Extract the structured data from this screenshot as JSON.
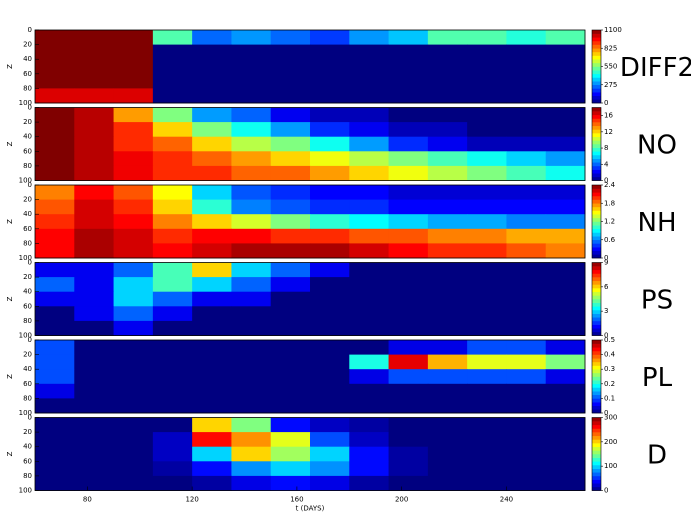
{
  "chart_data": [
    {
      "type": "heatmap",
      "label": "DIFF2",
      "ylabel": "Z",
      "xlim": [
        60,
        270
      ],
      "ylim": [
        100,
        0
      ],
      "yticks": [
        0,
        20,
        40,
        60,
        80,
        100
      ],
      "x_bins": [
        60,
        75,
        90,
        105,
        120,
        135,
        150,
        165,
        180,
        195,
        210,
        225,
        240,
        255,
        270
      ],
      "y_bins": [
        0,
        20,
        40,
        60,
        80,
        100
      ],
      "zlim": [
        0,
        1100
      ],
      "zticks": [
        0,
        275,
        550,
        825,
        1100
      ],
      "values": [
        [
          1100,
          1100,
          1100,
          500,
          250,
          300,
          250,
          200,
          300,
          350,
          500,
          500,
          450,
          500
        ],
        [
          1100,
          1100,
          1100,
          0,
          0,
          0,
          0,
          0,
          0,
          0,
          0,
          0,
          0,
          0
        ],
        [
          1100,
          1100,
          1100,
          0,
          0,
          0,
          0,
          0,
          0,
          0,
          0,
          0,
          0,
          0
        ],
        [
          1100,
          1100,
          1100,
          0,
          0,
          0,
          0,
          0,
          0,
          0,
          0,
          0,
          0,
          0
        ],
        [
          1000,
          1000,
          1000,
          0,
          0,
          0,
          0,
          0,
          0,
          0,
          0,
          0,
          0,
          0
        ]
      ]
    },
    {
      "type": "heatmap",
      "label": "NO",
      "ylabel": "Z",
      "xlim": [
        60,
        270
      ],
      "ylim": [
        100,
        0
      ],
      "yticks": [
        0,
        20,
        40,
        60,
        80,
        100
      ],
      "x_bins": [
        60,
        75,
        90,
        105,
        120,
        135,
        150,
        165,
        180,
        195,
        210,
        225,
        240,
        255,
        270
      ],
      "y_bins": [
        0,
        20,
        40,
        60,
        80,
        100
      ],
      "zlim": [
        0,
        18
      ],
      "zticks": [
        0,
        4,
        8,
        12,
        16
      ],
      "values": [
        [
          18,
          17,
          13,
          9,
          5,
          4,
          2,
          1,
          1,
          0,
          0,
          0,
          0,
          0
        ],
        [
          18,
          17,
          15,
          12,
          9,
          7,
          5,
          3,
          2,
          1,
          1,
          0,
          0,
          0
        ],
        [
          18,
          17,
          15,
          14,
          12,
          10,
          9,
          7,
          5,
          3,
          2,
          1,
          1,
          1
        ],
        [
          18,
          17,
          16,
          15,
          14,
          13,
          12,
          11,
          10,
          9,
          8,
          7,
          6,
          5
        ],
        [
          18,
          17,
          16,
          15,
          15,
          14,
          14,
          13,
          12,
          11,
          10,
          9,
          8,
          7
        ]
      ]
    },
    {
      "type": "heatmap",
      "label": "NH",
      "ylabel": "Z",
      "xlim": [
        60,
        270
      ],
      "ylim": [
        100,
        0
      ],
      "yticks": [
        0,
        20,
        40,
        60,
        80,
        100
      ],
      "x_bins": [
        60,
        75,
        90,
        105,
        120,
        135,
        150,
        165,
        180,
        195,
        210,
        225,
        240,
        255,
        270
      ],
      "y_bins": [
        0,
        20,
        40,
        60,
        80,
        100
      ],
      "zlim": [
        0,
        2.4
      ],
      "zticks": [
        0,
        0.6,
        1.2,
        1.8,
        2.4
      ],
      "values": [
        [
          1.8,
          2.1,
          1.9,
          1.5,
          0.8,
          0.5,
          0.4,
          0.3,
          0.3,
          0.2,
          0.2,
          0.2,
          0.2,
          0.2
        ],
        [
          1.9,
          2.2,
          2.0,
          1.6,
          1.0,
          0.6,
          0.5,
          0.4,
          0.4,
          0.3,
          0.3,
          0.3,
          0.3,
          0.3
        ],
        [
          2.0,
          2.2,
          2.1,
          1.8,
          1.6,
          1.4,
          1.2,
          1.0,
          0.9,
          0.8,
          0.7,
          0.7,
          0.6,
          0.6
        ],
        [
          2.1,
          2.3,
          2.2,
          2.0,
          2.1,
          2.1,
          2.0,
          2.0,
          1.9,
          1.9,
          1.8,
          1.8,
          1.7,
          1.7
        ],
        [
          2.1,
          2.3,
          2.2,
          2.1,
          2.2,
          2.3,
          2.3,
          2.3,
          2.2,
          2.1,
          2.0,
          2.0,
          1.9,
          1.8
        ]
      ]
    },
    {
      "type": "heatmap",
      "label": "PS",
      "ylabel": "Z",
      "xlim": [
        60,
        270
      ],
      "ylim": [
        100,
        0
      ],
      "yticks": [
        0,
        20,
        40,
        60,
        80,
        100
      ],
      "x_bins": [
        60,
        75,
        90,
        105,
        120,
        135,
        150,
        165,
        180,
        195,
        210,
        225,
        240,
        255,
        270
      ],
      "y_bins": [
        0,
        20,
        40,
        60,
        80,
        100
      ],
      "zlim": [
        0,
        9
      ],
      "zticks": [
        0,
        3,
        6,
        9
      ],
      "values": [
        [
          1,
          1,
          2,
          4,
          6,
          3,
          2,
          1,
          0,
          0,
          0,
          0,
          0,
          0
        ],
        [
          2,
          1,
          3,
          4,
          3,
          2,
          1,
          0,
          0,
          0,
          0,
          0,
          0,
          0
        ],
        [
          1,
          1,
          3,
          2,
          1,
          1,
          0,
          0,
          0,
          0,
          0,
          0,
          0,
          0
        ],
        [
          0,
          1,
          2,
          1,
          0,
          0,
          0,
          0,
          0,
          0,
          0,
          0,
          0,
          0
        ],
        [
          0,
          0,
          1,
          0,
          0,
          0,
          0,
          0,
          0,
          0,
          0,
          0,
          0,
          0
        ]
      ]
    },
    {
      "type": "heatmap",
      "label": "PL",
      "ylabel": "Z",
      "xlim": [
        60,
        270
      ],
      "ylim": [
        100,
        0
      ],
      "yticks": [
        0,
        20,
        40,
        60,
        80,
        100
      ],
      "x_bins": [
        60,
        75,
        90,
        105,
        120,
        135,
        150,
        165,
        180,
        195,
        210,
        225,
        240,
        255,
        270
      ],
      "y_bins": [
        0,
        20,
        40,
        60,
        80,
        100
      ],
      "zlim": [
        0,
        0.5
      ],
      "zticks": [
        0,
        0.1,
        0.2,
        0.3,
        0.4,
        0.5
      ],
      "values": [
        [
          0.1,
          0,
          0,
          0,
          0,
          0,
          0,
          0,
          0,
          0.05,
          0.05,
          0.1,
          0.1,
          0.05
        ],
        [
          0.1,
          0,
          0,
          0,
          0,
          0,
          0,
          0,
          0.2,
          0.45,
          0.35,
          0.3,
          0.3,
          0.25
        ],
        [
          0.1,
          0,
          0,
          0,
          0,
          0,
          0,
          0,
          0.05,
          0.1,
          0.1,
          0.1,
          0.1,
          0.05
        ],
        [
          0.05,
          0,
          0,
          0,
          0,
          0,
          0,
          0,
          0,
          0,
          0,
          0,
          0,
          0
        ],
        [
          0,
          0,
          0,
          0,
          0,
          0,
          0,
          0,
          0,
          0,
          0,
          0,
          0,
          0
        ]
      ]
    },
    {
      "type": "heatmap",
      "label": "D",
      "ylabel": "Z",
      "xlim": [
        60,
        270
      ],
      "ylim": [
        100,
        0
      ],
      "yticks": [
        0,
        20,
        40,
        60,
        80,
        100
      ],
      "x_bins": [
        60,
        75,
        90,
        105,
        120,
        135,
        150,
        165,
        180,
        195,
        210,
        225,
        240,
        255,
        270
      ],
      "y_bins": [
        0,
        20,
        40,
        60,
        80,
        100
      ],
      "zlim": [
        0,
        300
      ],
      "zticks": [
        0,
        100,
        200,
        300
      ],
      "xticks": [
        80,
        120,
        160,
        200,
        240
      ],
      "xlabel": "t (DAYS)",
      "values": [
        [
          0,
          0,
          0,
          0,
          200,
          150,
          40,
          20,
          10,
          0,
          0,
          0,
          0,
          0
        ],
        [
          0,
          0,
          0,
          20,
          260,
          220,
          180,
          60,
          20,
          0,
          0,
          0,
          0,
          0
        ],
        [
          0,
          0,
          0,
          20,
          100,
          200,
          160,
          100,
          40,
          10,
          0,
          0,
          0,
          0
        ],
        [
          0,
          0,
          0,
          10,
          40,
          80,
          100,
          80,
          40,
          10,
          0,
          0,
          0,
          0
        ],
        [
          0,
          0,
          0,
          0,
          10,
          30,
          40,
          30,
          10,
          0,
          0,
          0,
          0,
          0
        ]
      ]
    }
  ]
}
